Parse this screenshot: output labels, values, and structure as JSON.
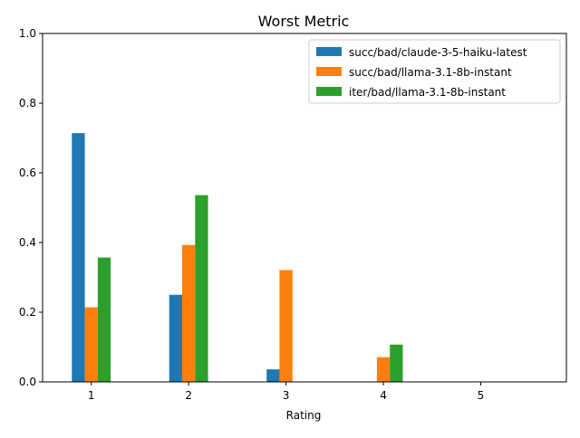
{
  "chart_data": {
    "type": "bar",
    "title": "Worst Metric",
    "xlabel": "Rating",
    "ylabel": "",
    "categories": [
      "1",
      "2",
      "3",
      "4",
      "5"
    ],
    "ylim": [
      0,
      1.0
    ],
    "yticks": [
      "0.0",
      "0.2",
      "0.4",
      "0.6",
      "0.8",
      "1.0"
    ],
    "legend_position": "top-right",
    "grid": false,
    "series": [
      {
        "name": "succ/bad/claude-3-5-haiku-latest",
        "color": "#1f77b4",
        "values": [
          0.714,
          0.25,
          0.036,
          0,
          0
        ]
      },
      {
        "name": "succ/bad/llama-3.1-8b-instant",
        "color": "#ff7f0e",
        "values": [
          0.214,
          0.393,
          0.321,
          0.071,
          0
        ]
      },
      {
        "name": "iter/bad/llama-3.1-8b-instant",
        "color": "#2ca02c",
        "values": [
          0.357,
          0.536,
          0,
          0.107,
          0
        ]
      }
    ]
  }
}
